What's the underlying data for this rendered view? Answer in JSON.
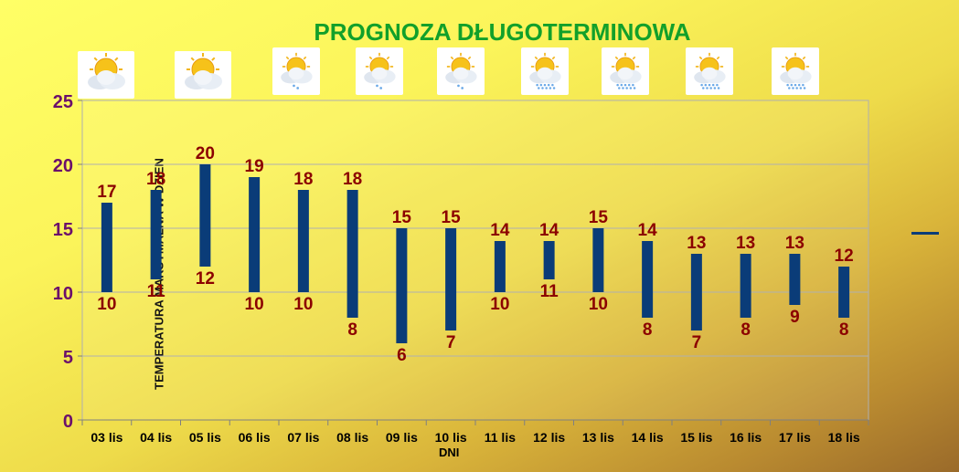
{
  "chart_data": {
    "type": "bar",
    "subtype": "floating-range",
    "title": "PROGNOZA DŁUGOTERMINOWA",
    "xlabel": "DNI",
    "ylabel": "TEMPERATURA MAKSYMALNA W DZIEN",
    "ylim": [
      0,
      25
    ],
    "yticks": [
      "0",
      "5",
      "10",
      "15",
      "20",
      "25"
    ],
    "categories": [
      "03 lis",
      "04 lis",
      "05 lis",
      "06 lis",
      "07 lis",
      "08 lis",
      "09 lis",
      "10 lis",
      "11 lis",
      "12 lis",
      "13 lis",
      "14 lis",
      "15 lis",
      "16 lis",
      "17 lis",
      "18 lis"
    ],
    "series": [
      {
        "values": [
          17,
          18,
          20,
          19,
          18,
          18,
          15,
          15,
          14,
          14,
          15,
          14,
          13,
          13,
          13,
          12
        ]
      },
      {
        "values": [
          10,
          11,
          12,
          10,
          10,
          8,
          6,
          7,
          10,
          11,
          10,
          8,
          7,
          8,
          9,
          8
        ]
      }
    ],
    "grid": true,
    "legend": "right",
    "colors": {
      "bar": "#0a3c78",
      "labels": "#8b0000",
      "title": "#12a02a",
      "grid": "#b0b0b0"
    }
  },
  "weather_icons": [
    "partly-cloudy-icon",
    "partly-cloudy-icon",
    "sun-drizzle-icon",
    "sun-drizzle-icon",
    "sun-drizzle-icon",
    "sun-rain-icon",
    "sun-rain-icon",
    "sun-rain-icon",
    "sun-rain-icon"
  ]
}
